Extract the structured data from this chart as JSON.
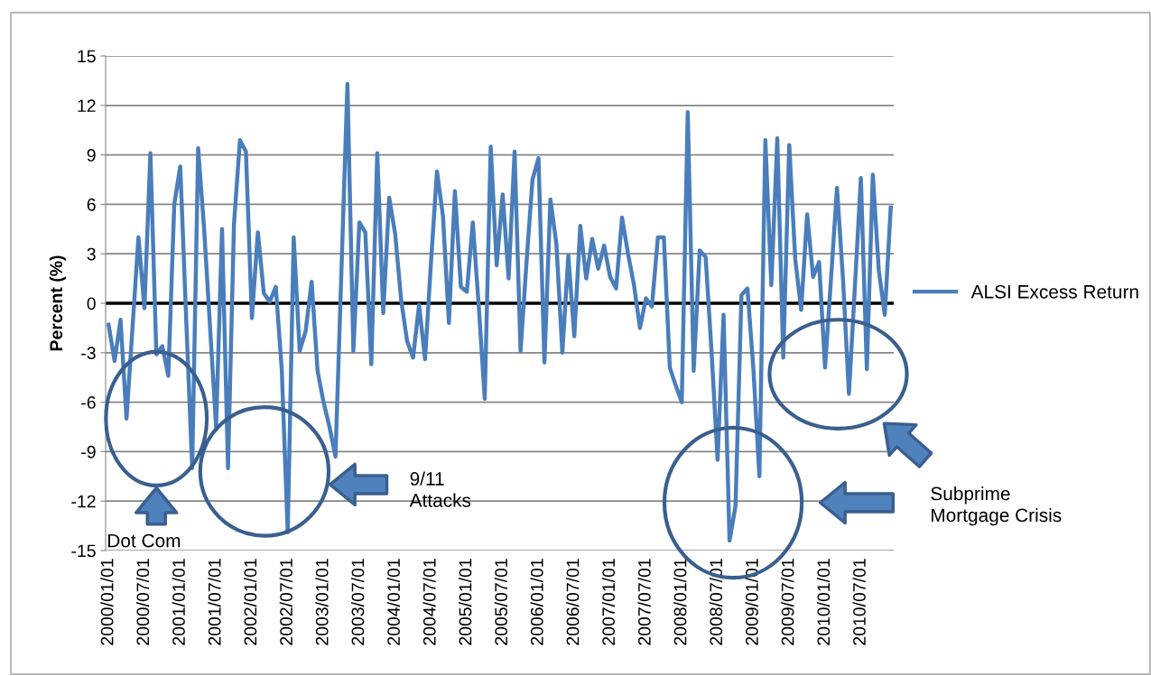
{
  "chart_data": {
    "type": "line",
    "ylabel": "Percent (%)",
    "categories": [
      "2000/01/01",
      null,
      null,
      null,
      null,
      null,
      "2000/07/01",
      null,
      null,
      null,
      null,
      null,
      "2001/01/01",
      null,
      null,
      null,
      null,
      null,
      "2001/07/01",
      null,
      null,
      null,
      null,
      null,
      "2002/01/01",
      null,
      null,
      null,
      null,
      null,
      "2002/07/01",
      null,
      null,
      null,
      null,
      null,
      "2003/01/01",
      null,
      null,
      null,
      null,
      null,
      "2003/07/01",
      null,
      null,
      null,
      null,
      null,
      "2004/01/01",
      null,
      null,
      null,
      null,
      null,
      "2004/07/01",
      null,
      null,
      null,
      null,
      null,
      "2005/01/01",
      null,
      null,
      null,
      null,
      null,
      "2005/07/01",
      null,
      null,
      null,
      null,
      null,
      "2006/01/01",
      null,
      null,
      null,
      null,
      null,
      "2006/07/01",
      null,
      null,
      null,
      null,
      null,
      "2007/01/01",
      null,
      null,
      null,
      null,
      null,
      "2007/07/01",
      null,
      null,
      null,
      null,
      null,
      "2008/01/01",
      null,
      null,
      null,
      null,
      null,
      "2008/07/01",
      null,
      null,
      null,
      null,
      null,
      "2009/01/01",
      null,
      null,
      null,
      null,
      null,
      "2009/07/01",
      null,
      null,
      null,
      null,
      null,
      "2010/01/01",
      null,
      null,
      null,
      null,
      null,
      "2010/07/01",
      null,
      null,
      null,
      null,
      null
    ],
    "series": [
      {
        "name": "ALSI Excess Return",
        "color": "#4a7ebb",
        "values": [
          -1.3,
          -3.5,
          -1.0,
          -7.0,
          -1.5,
          4.0,
          -0.3,
          9.1,
          -3.1,
          -2.6,
          -4.4,
          6.0,
          8.3,
          -1.0,
          -10.0,
          9.4,
          4.5,
          -1.5,
          -7.5,
          4.5,
          -10.0,
          4.8,
          9.9,
          9.2,
          -0.9,
          4.3,
          0.6,
          0.1,
          1.0,
          -4.0,
          -13.9,
          4.0,
          -2.9,
          -1.7,
          1.3,
          -4.1,
          -6.0,
          -7.5,
          -9.3,
          2.0,
          13.3,
          -2.9,
          4.9,
          4.3,
          -3.7,
          9.1,
          -0.6,
          6.4,
          4.2,
          0.2,
          -2.3,
          -3.3,
          -0.1,
          -3.4,
          2.5,
          8.0,
          5.3,
          -1.2,
          6.8,
          1.0,
          0.7,
          4.9,
          -0.2,
          -5.8,
          9.5,
          2.3,
          6.6,
          1.5,
          9.2,
          -2.9,
          2.5,
          7.5,
          8.8,
          -3.6,
          6.3,
          3.6,
          -3.0,
          2.9,
          -2.0,
          4.7,
          1.5,
          3.9,
          2.1,
          3.5,
          1.6,
          0.9,
          5.2,
          3.0,
          1.1,
          -1.5,
          0.3,
          -0.2,
          4.0,
          4.0,
          -3.9,
          -5.0,
          -6.0,
          11.6,
          -4.1,
          3.2,
          2.8,
          -3.0,
          -9.5,
          -0.7,
          -14.4,
          -12.3,
          0.5,
          0.9,
          -4.0,
          -10.5,
          9.9,
          1.1,
          10.0,
          -3.3,
          9.6,
          2.7,
          -0.4,
          5.4,
          1.6,
          2.5,
          -3.9,
          1.5,
          7.0,
          1.5,
          -5.5,
          1.0,
          7.6,
          -4.0,
          7.8,
          2.0,
          -0.7,
          5.8
        ]
      }
    ],
    "ylim": [
      -15,
      15
    ],
    "yticks": [
      -15,
      -12,
      -9,
      -6,
      -3,
      0,
      3,
      6,
      9,
      12,
      15
    ],
    "grid": "y",
    "legend": "right",
    "marker": "none",
    "line_style": "solid",
    "ref_lines": [
      {
        "axis": "y",
        "value": 0,
        "color": "#000000"
      }
    ],
    "annotations": [
      "Dot Com",
      "9/11\nAttacks",
      "Subprime\nMortgage Crisis"
    ]
  }
}
